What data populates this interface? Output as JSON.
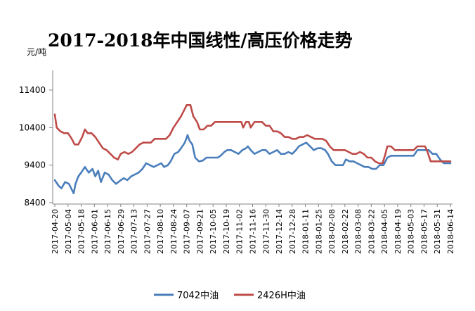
{
  "chart_data": {
    "type": "line",
    "title": "2017-2018年中国线性/高压价格走势",
    "ylabel": "元/吨",
    "ylim": [
      8400,
      11400
    ],
    "yticks": [
      8400,
      9400,
      10400,
      11400
    ],
    "grid": false,
    "legend": "bottom",
    "x_ticks": [
      "2017-04-20",
      "2017-05-04",
      "2017-05-18",
      "2017-06-01",
      "2017-06-15",
      "2017-06-29",
      "2017-07-13",
      "2017-07-27",
      "2017-08-10",
      "2017-08-24",
      "2017-09-07",
      "2017-09-21",
      "2017-10-05",
      "2017-10-19",
      "2017-11-02",
      "2017-11-16",
      "2017-11-30",
      "2017-12-14",
      "2017-12-28",
      "2018-01-11",
      "2018-01-25",
      "2018-02-08",
      "2018-02-22",
      "2018-03-08",
      "2018-03-22",
      "2018-04-05",
      "2018-04-19",
      "2018-05-03",
      "2018-05-17",
      "2018-05-31",
      "2018-06-14"
    ],
    "series": [
      {
        "name": "7042中油",
        "color": "#4a7ebb",
        "points": [
          [
            "2017-04-20",
            9000
          ],
          [
            "2017-04-24",
            8850
          ],
          [
            "2017-04-27",
            8780
          ],
          [
            "2017-05-01",
            8950
          ],
          [
            "2017-05-05",
            8900
          ],
          [
            "2017-05-08",
            8750
          ],
          [
            "2017-05-10",
            8650
          ],
          [
            "2017-05-12",
            8900
          ],
          [
            "2017-05-15",
            9100
          ],
          [
            "2017-05-18",
            9200
          ],
          [
            "2017-05-22",
            9350
          ],
          [
            "2017-05-26",
            9200
          ],
          [
            "2017-05-30",
            9300
          ],
          [
            "2017-06-02",
            9100
          ],
          [
            "2017-06-05",
            9250
          ],
          [
            "2017-06-08",
            8950
          ],
          [
            "2017-06-12",
            9200
          ],
          [
            "2017-06-16",
            9150
          ],
          [
            "2017-06-20",
            9000
          ],
          [
            "2017-06-24",
            8900
          ],
          [
            "2017-06-28",
            8980
          ],
          [
            "2017-07-02",
            9050
          ],
          [
            "2017-07-06",
            9000
          ],
          [
            "2017-07-10",
            9100
          ],
          [
            "2017-07-14",
            9150
          ],
          [
            "2017-07-18",
            9200
          ],
          [
            "2017-07-22",
            9300
          ],
          [
            "2017-07-26",
            9450
          ],
          [
            "2017-07-30",
            9400
          ],
          [
            "2017-08-03",
            9350
          ],
          [
            "2017-08-07",
            9400
          ],
          [
            "2017-08-11",
            9450
          ],
          [
            "2017-08-14",
            9350
          ],
          [
            "2017-08-18",
            9400
          ],
          [
            "2017-08-21",
            9500
          ],
          [
            "2017-08-25",
            9700
          ],
          [
            "2017-08-29",
            9750
          ],
          [
            "2017-09-01",
            9850
          ],
          [
            "2017-09-05",
            10000
          ],
          [
            "2017-09-08",
            10200
          ],
          [
            "2017-09-10",
            10050
          ],
          [
            "2017-09-13",
            9950
          ],
          [
            "2017-09-16",
            9600
          ],
          [
            "2017-09-20",
            9500
          ],
          [
            "2017-09-24",
            9520
          ],
          [
            "2017-09-28",
            9600
          ],
          [
            "2017-10-03",
            9600
          ],
          [
            "2017-10-10",
            9600
          ],
          [
            "2017-10-13",
            9650
          ],
          [
            "2017-10-17",
            9750
          ],
          [
            "2017-10-20",
            9800
          ],
          [
            "2017-10-24",
            9800
          ],
          [
            "2017-10-28",
            9750
          ],
          [
            "2017-11-01",
            9700
          ],
          [
            "2017-11-05",
            9800
          ],
          [
            "2017-11-09",
            9850
          ],
          [
            "2017-11-11",
            9900
          ],
          [
            "2017-11-14",
            9800
          ],
          [
            "2017-11-18",
            9700
          ],
          [
            "2017-11-22",
            9750
          ],
          [
            "2017-11-26",
            9800
          ],
          [
            "2017-11-30",
            9800
          ],
          [
            "2017-12-04",
            9700
          ],
          [
            "2017-12-08",
            9750
          ],
          [
            "2017-12-12",
            9800
          ],
          [
            "2017-12-16",
            9700
          ],
          [
            "2017-12-20",
            9700
          ],
          [
            "2017-12-24",
            9750
          ],
          [
            "2017-12-28",
            9700
          ],
          [
            "2018-01-01",
            9800
          ],
          [
            "2018-01-04",
            9900
          ],
          [
            "2018-01-08",
            9950
          ],
          [
            "2018-01-12",
            10000
          ],
          [
            "2018-01-16",
            9900
          ],
          [
            "2018-01-20",
            9800
          ],
          [
            "2018-01-24",
            9850
          ],
          [
            "2018-01-28",
            9850
          ],
          [
            "2018-02-01",
            9800
          ],
          [
            "2018-02-04",
            9700
          ],
          [
            "2018-02-08",
            9500
          ],
          [
            "2018-02-12",
            9400
          ],
          [
            "2018-02-16",
            9400
          ],
          [
            "2018-02-20",
            9400
          ],
          [
            "2018-02-23",
            9550
          ],
          [
            "2018-02-27",
            9500
          ],
          [
            "2018-03-03",
            9500
          ],
          [
            "2018-03-07",
            9450
          ],
          [
            "2018-03-11",
            9400
          ],
          [
            "2018-03-15",
            9350
          ],
          [
            "2018-03-19",
            9350
          ],
          [
            "2018-03-23",
            9300
          ],
          [
            "2018-03-27",
            9300
          ],
          [
            "2018-03-31",
            9400
          ],
          [
            "2018-04-04",
            9400
          ],
          [
            "2018-04-08",
            9600
          ],
          [
            "2018-04-12",
            9650
          ],
          [
            "2018-04-16",
            9650
          ],
          [
            "2018-04-20",
            9650
          ],
          [
            "2018-04-24",
            9650
          ],
          [
            "2018-04-28",
            9650
          ],
          [
            "2018-05-02",
            9650
          ],
          [
            "2018-05-06",
            9650
          ],
          [
            "2018-05-10",
            9800
          ],
          [
            "2018-05-14",
            9800
          ],
          [
            "2018-05-18",
            9800
          ],
          [
            "2018-05-22",
            9800
          ],
          [
            "2018-05-26",
            9700
          ],
          [
            "2018-05-30",
            9700
          ],
          [
            "2018-06-03",
            9550
          ],
          [
            "2018-06-07",
            9450
          ],
          [
            "2018-06-11",
            9450
          ],
          [
            "2018-06-14",
            9450
          ]
        ]
      },
      {
        "name": "2426H中油",
        "color": "#be4b48",
        "points": [
          [
            "2017-04-20",
            10750
          ],
          [
            "2017-04-22",
            10400
          ],
          [
            "2017-04-26",
            10300
          ],
          [
            "2017-04-30",
            10250
          ],
          [
            "2017-05-04",
            10250
          ],
          [
            "2017-05-08",
            10100
          ],
          [
            "2017-05-11",
            9950
          ],
          [
            "2017-05-15",
            9950
          ],
          [
            "2017-05-19",
            10150
          ],
          [
            "2017-05-22",
            10350
          ],
          [
            "2017-05-25",
            10250
          ],
          [
            "2017-05-29",
            10250
          ],
          [
            "2017-06-02",
            10150
          ],
          [
            "2017-06-06",
            10000
          ],
          [
            "2017-06-10",
            9850
          ],
          [
            "2017-06-14",
            9800
          ],
          [
            "2017-06-18",
            9700
          ],
          [
            "2017-06-22",
            9600
          ],
          [
            "2017-06-26",
            9550
          ],
          [
            "2017-06-29",
            9700
          ],
          [
            "2017-07-03",
            9750
          ],
          [
            "2017-07-07",
            9700
          ],
          [
            "2017-07-11",
            9750
          ],
          [
            "2017-07-15",
            9850
          ],
          [
            "2017-07-19",
            9950
          ],
          [
            "2017-07-23",
            10000
          ],
          [
            "2017-07-27",
            10000
          ],
          [
            "2017-07-31",
            10000
          ],
          [
            "2017-08-04",
            10100
          ],
          [
            "2017-08-08",
            10100
          ],
          [
            "2017-08-12",
            10100
          ],
          [
            "2017-08-16",
            10100
          ],
          [
            "2017-08-20",
            10200
          ],
          [
            "2017-08-24",
            10400
          ],
          [
            "2017-08-28",
            10550
          ],
          [
            "2017-09-01",
            10700
          ],
          [
            "2017-09-05",
            10900
          ],
          [
            "2017-09-07",
            11000
          ],
          [
            "2017-09-11",
            11000
          ],
          [
            "2017-09-14",
            10700
          ],
          [
            "2017-09-18",
            10550
          ],
          [
            "2017-09-21",
            10350
          ],
          [
            "2017-09-25",
            10350
          ],
          [
            "2017-09-29",
            10450
          ],
          [
            "2017-10-03",
            10450
          ],
          [
            "2017-10-07",
            10550
          ],
          [
            "2017-10-11",
            10550
          ],
          [
            "2017-10-15",
            10550
          ],
          [
            "2017-10-19",
            10550
          ],
          [
            "2017-10-23",
            10550
          ],
          [
            "2017-10-27",
            10550
          ],
          [
            "2017-10-31",
            10550
          ],
          [
            "2017-11-04",
            10550
          ],
          [
            "2017-11-06",
            10400
          ],
          [
            "2017-11-09",
            10550
          ],
          [
            "2017-11-12",
            10550
          ],
          [
            "2017-11-14",
            10400
          ],
          [
            "2017-11-18",
            10550
          ],
          [
            "2017-11-22",
            10550
          ],
          [
            "2017-11-26",
            10550
          ],
          [
            "2017-11-30",
            10450
          ],
          [
            "2017-12-04",
            10450
          ],
          [
            "2017-12-08",
            10300
          ],
          [
            "2017-12-12",
            10300
          ],
          [
            "2017-12-16",
            10250
          ],
          [
            "2017-12-20",
            10150
          ],
          [
            "2017-12-24",
            10150
          ],
          [
            "2017-12-28",
            10100
          ],
          [
            "2018-01-01",
            10100
          ],
          [
            "2018-01-05",
            10150
          ],
          [
            "2018-01-09",
            10150
          ],
          [
            "2018-01-13",
            10200
          ],
          [
            "2018-01-17",
            10150
          ],
          [
            "2018-01-21",
            10100
          ],
          [
            "2018-01-25",
            10100
          ],
          [
            "2018-01-29",
            10100
          ],
          [
            "2018-02-02",
            10050
          ],
          [
            "2018-02-06",
            9900
          ],
          [
            "2018-02-10",
            9800
          ],
          [
            "2018-02-14",
            9800
          ],
          [
            "2018-02-18",
            9800
          ],
          [
            "2018-02-22",
            9800
          ],
          [
            "2018-02-26",
            9750
          ],
          [
            "2018-03-02",
            9700
          ],
          [
            "2018-03-06",
            9700
          ],
          [
            "2018-03-10",
            9750
          ],
          [
            "2018-03-14",
            9700
          ],
          [
            "2018-03-18",
            9600
          ],
          [
            "2018-03-22",
            9600
          ],
          [
            "2018-03-26",
            9500
          ],
          [
            "2018-03-30",
            9450
          ],
          [
            "2018-04-03",
            9450
          ],
          [
            "2018-04-06",
            9700
          ],
          [
            "2018-04-08",
            9900
          ],
          [
            "2018-04-12",
            9900
          ],
          [
            "2018-04-16",
            9800
          ],
          [
            "2018-04-20",
            9800
          ],
          [
            "2018-04-24",
            9800
          ],
          [
            "2018-04-28",
            9800
          ],
          [
            "2018-05-02",
            9800
          ],
          [
            "2018-05-06",
            9800
          ],
          [
            "2018-05-10",
            9900
          ],
          [
            "2018-05-14",
            9900
          ],
          [
            "2018-05-18",
            9900
          ],
          [
            "2018-05-20",
            9800
          ],
          [
            "2018-05-24",
            9500
          ],
          [
            "2018-05-28",
            9500
          ],
          [
            "2018-06-01",
            9500
          ],
          [
            "2018-06-05",
            9500
          ],
          [
            "2018-06-09",
            9500
          ],
          [
            "2018-06-14",
            9500
          ]
        ]
      }
    ]
  }
}
